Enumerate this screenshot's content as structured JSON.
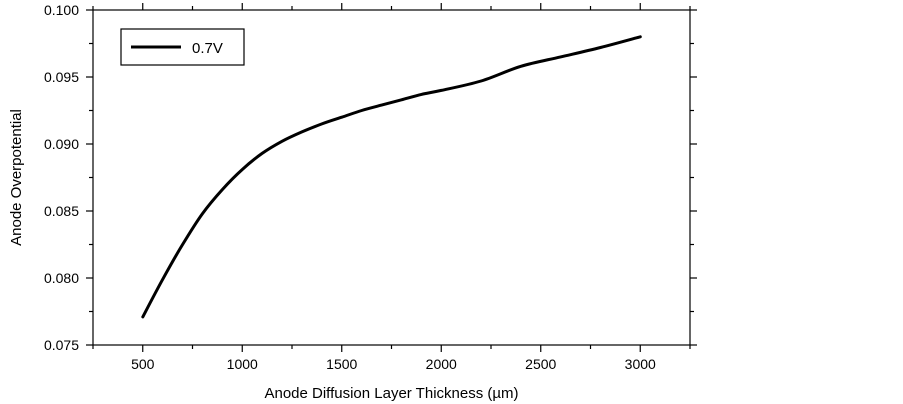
{
  "chart_data": {
    "type": "line",
    "title": "",
    "xlabel": "Anode Diffusion Layer Thickness (µm)",
    "ylabel": "Anode Overpotential",
    "xlim": [
      250,
      3250
    ],
    "ylim": [
      0.075,
      0.1
    ],
    "x_ticks": [
      500,
      1000,
      1500,
      2000,
      2500,
      3000
    ],
    "x_tick_labels": [
      "500",
      "1000",
      "1500",
      "2000",
      "2500",
      "3000"
    ],
    "y_ticks": [
      0.075,
      0.08,
      0.085,
      0.09,
      0.095,
      0.1
    ],
    "y_tick_labels": [
      "0.075",
      "0.080",
      "0.085",
      "0.090",
      "0.095",
      "0.100"
    ],
    "grid": false,
    "legend_position": "top-left",
    "series": [
      {
        "name": "0.7V",
        "color": "#000000",
        "x": [
          500,
          600,
          700,
          800,
          900,
          1000,
          1100,
          1200,
          1300,
          1400,
          1500,
          1600,
          1700,
          1800,
          1900,
          2000,
          2200,
          2400,
          2600,
          2800,
          3000
        ],
        "y": [
          0.0771,
          0.0799,
          0.0825,
          0.0848,
          0.0866,
          0.0881,
          0.0893,
          0.0902,
          0.0909,
          0.0915,
          0.092,
          0.0925,
          0.0929,
          0.0933,
          0.0937,
          0.094,
          0.0947,
          0.0958,
          0.0965,
          0.0972,
          0.098
        ]
      }
    ]
  }
}
